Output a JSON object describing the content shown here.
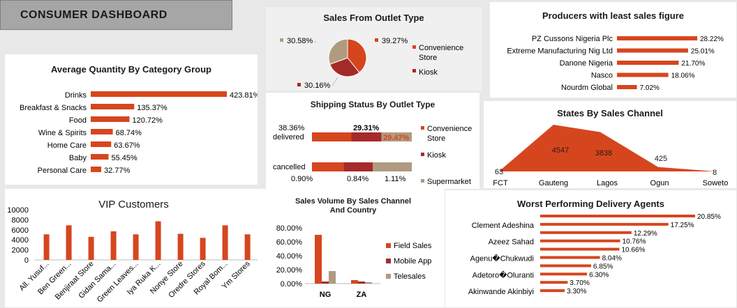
{
  "dashboard": {
    "title": "CONSUMER DASHBOARD"
  },
  "colors": {
    "orange": "#d6461e",
    "darkred": "#a52a2a",
    "tan": "#b09a80"
  },
  "chart_data": [
    {
      "id": "avg_qty",
      "type": "bar",
      "orientation": "horizontal",
      "title": "Average Quantity By Category Group",
      "categories": [
        "Drinks",
        "Breakfast & Snacks",
        "Food",
        "Wine & Spirits",
        "Home Care",
        "Baby",
        "Personal Care"
      ],
      "values": [
        423.81,
        135.37,
        120.72,
        68.74,
        63.67,
        55.45,
        32.77
      ],
      "labels": [
        "423.81%",
        "135.37%",
        "120.72%",
        "68.74%",
        "63.67%",
        "55.45%",
        "32.77%"
      ]
    },
    {
      "id": "outlet_pie",
      "type": "pie",
      "title": "Sales From Outlet Type",
      "categories": [
        "Convenience Store",
        "Kiosk",
        "Supermarket"
      ],
      "values": [
        39.27,
        30.16,
        30.58
      ],
      "labels": [
        "39.27%",
        "30.16%",
        "30.58%"
      ],
      "legend": [
        "Convenience Store",
        "Kiosk"
      ]
    },
    {
      "id": "least_producers",
      "type": "bar",
      "orientation": "horizontal",
      "title": "Producers with least sales figure",
      "categories": [
        "PZ Cussons Nigeria Plc",
        "Extreme Manufacturing Nig Ltd",
        "Danone Nigeria",
        "Nasco",
        "Nourdm Global"
      ],
      "values": [
        28.22,
        25.01,
        21.7,
        18.06,
        7.02
      ],
      "labels": [
        "28.22%",
        "25.01%",
        "21.70%",
        "18.06%",
        "7.02%"
      ]
    },
    {
      "id": "shipping",
      "type": "bar",
      "orientation": "horizontal",
      "stacked": true,
      "title": "Shipping Status By Outlet Type",
      "categories": [
        "delivered",
        "cancelled"
      ],
      "series": [
        {
          "name": "Convenience Store",
          "values": [
            38.36,
            0.9
          ]
        },
        {
          "name": "Kiosk",
          "values": [
            29.31,
            0.84
          ]
        },
        {
          "name": "Supermarket",
          "values": [
            29.47,
            1.11
          ]
        }
      ],
      "labels": {
        "delivered": [
          "38.36%",
          "29.31%",
          "29.47%"
        ],
        "cancelled": [
          "0.90%",
          "0.84%",
          "1.11%"
        ]
      }
    },
    {
      "id": "states",
      "type": "area",
      "title": "States By Sales Channel",
      "categories": [
        "FCT",
        "Gauteng",
        "Lagos",
        "Ogun",
        "Soweto"
      ],
      "values": [
        63,
        4547,
        3838,
        425,
        8
      ],
      "labels": [
        "63",
        "4547",
        "3838",
        "425",
        "8"
      ]
    },
    {
      "id": "vip",
      "type": "bar",
      "title": "VIP Customers",
      "categories": [
        "All. Yusuf...",
        "Ben Green...",
        "Benjiraat Store",
        "Gidan Sama...",
        "Green Leaves...",
        "Iya Ruka K...",
        "Nonye Store",
        "Oredre Stores",
        "Royal Bom...",
        "Ym Stores"
      ],
      "values": [
        5100,
        6900,
        4600,
        5700,
        5100,
        7700,
        5200,
        4400,
        6900,
        5100
      ],
      "ylim": [
        0,
        10000
      ],
      "yticks": [
        "0",
        "2000",
        "4000",
        "6000",
        "8000",
        "10000"
      ]
    },
    {
      "id": "volume",
      "type": "bar",
      "title": "Sales Volume By Sales Channel And Country",
      "title_lines": [
        "Sales Volume By Sales Channel",
        "And Country"
      ],
      "categories": [
        "NG",
        "ZA"
      ],
      "series": [
        {
          "name": "Field Sales",
          "values": [
            70,
            5
          ]
        },
        {
          "name": "Mobile App",
          "values": [
            3,
            3
          ]
        },
        {
          "name": "Telesales",
          "values": [
            18,
            2
          ]
        }
      ],
      "ylim": [
        0,
        80
      ],
      "yticks": [
        "0.00%",
        "20.00%",
        "40.00%",
        "60.00%",
        "80.00%"
      ]
    },
    {
      "id": "agents",
      "type": "bar",
      "orientation": "horizontal",
      "title": "Worst Performing Delivery Agents",
      "values": [
        20.85,
        17.25,
        12.29,
        10.76,
        10.66,
        8.04,
        6.85,
        6.3,
        3.7,
        3.3
      ],
      "labels": [
        "20.85%",
        "17.25%",
        "12.29%",
        "10.76%",
        "10.66%",
        "8.04%",
        "6.85%",
        "6.30%",
        "3.70%",
        "3.30%"
      ],
      "row_names": [
        "",
        "Clement Adeshina",
        "",
        "Azeez Sahad",
        "",
        "Agenu�Chukwudi",
        "",
        "Adetoro�Oluranti",
        "",
        "Akinwande Akinbiyi"
      ]
    }
  ]
}
